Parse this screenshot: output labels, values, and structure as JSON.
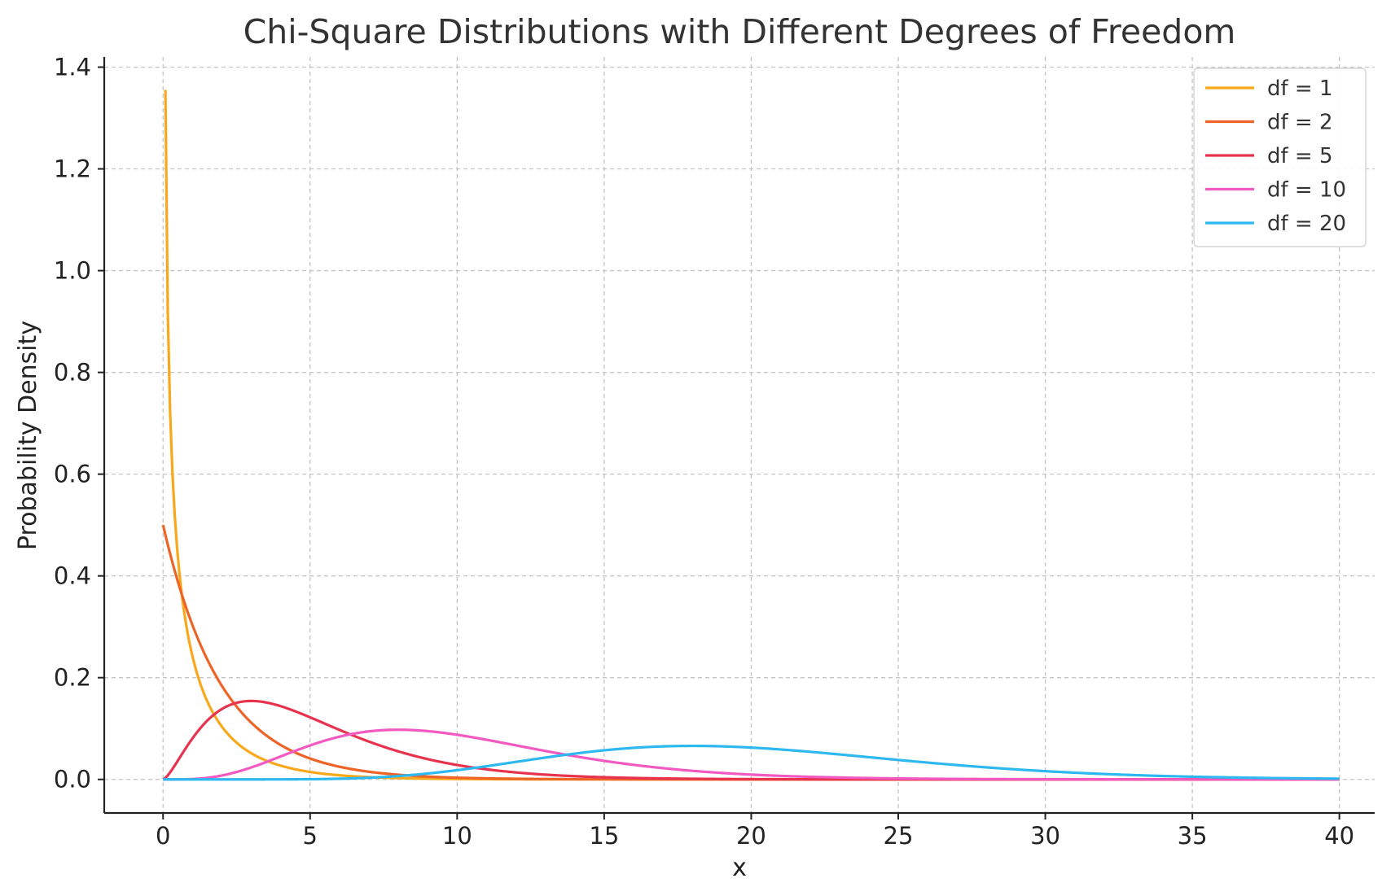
{
  "chart_data": {
    "type": "line",
    "title": "Chi-Square Distributions with Different Degrees of Freedom",
    "xlabel": "x",
    "ylabel": "Probability Density",
    "xlim": [
      -2,
      41.2
    ],
    "ylim": [
      -0.066,
      1.42
    ],
    "xticks": [
      0,
      5,
      10,
      15,
      20,
      25,
      30,
      35,
      40
    ],
    "yticks": [
      0.0,
      0.2,
      0.4,
      0.6,
      0.8,
      1.0,
      1.2,
      1.4
    ],
    "xtick_labels": [
      "0",
      "5",
      "10",
      "15",
      "20",
      "25",
      "30",
      "35",
      "40"
    ],
    "ytick_labels": [
      "0.0",
      "0.2",
      "0.4",
      "0.6",
      "0.8",
      "1.0",
      "1.2",
      "1.4"
    ],
    "grid": true,
    "legend_position": "top-right",
    "x_range": [
      0,
      40
    ],
    "series": [
      {
        "name": "df = 1",
        "df": 1,
        "color": "#F9A81B",
        "label": "df = 1"
      },
      {
        "name": "df = 2",
        "df": 2,
        "color": "#EE6427",
        "label": "df = 2"
      },
      {
        "name": "df = 5",
        "df": 5,
        "color": "#E8334F",
        "label": "df = 5"
      },
      {
        "name": "df = 10",
        "df": 10,
        "color": "#F25AC2",
        "label": "df = 10"
      },
      {
        "name": "df = 20",
        "df": 20,
        "color": "#2EB8F0",
        "label": "df = 20"
      }
    ]
  }
}
